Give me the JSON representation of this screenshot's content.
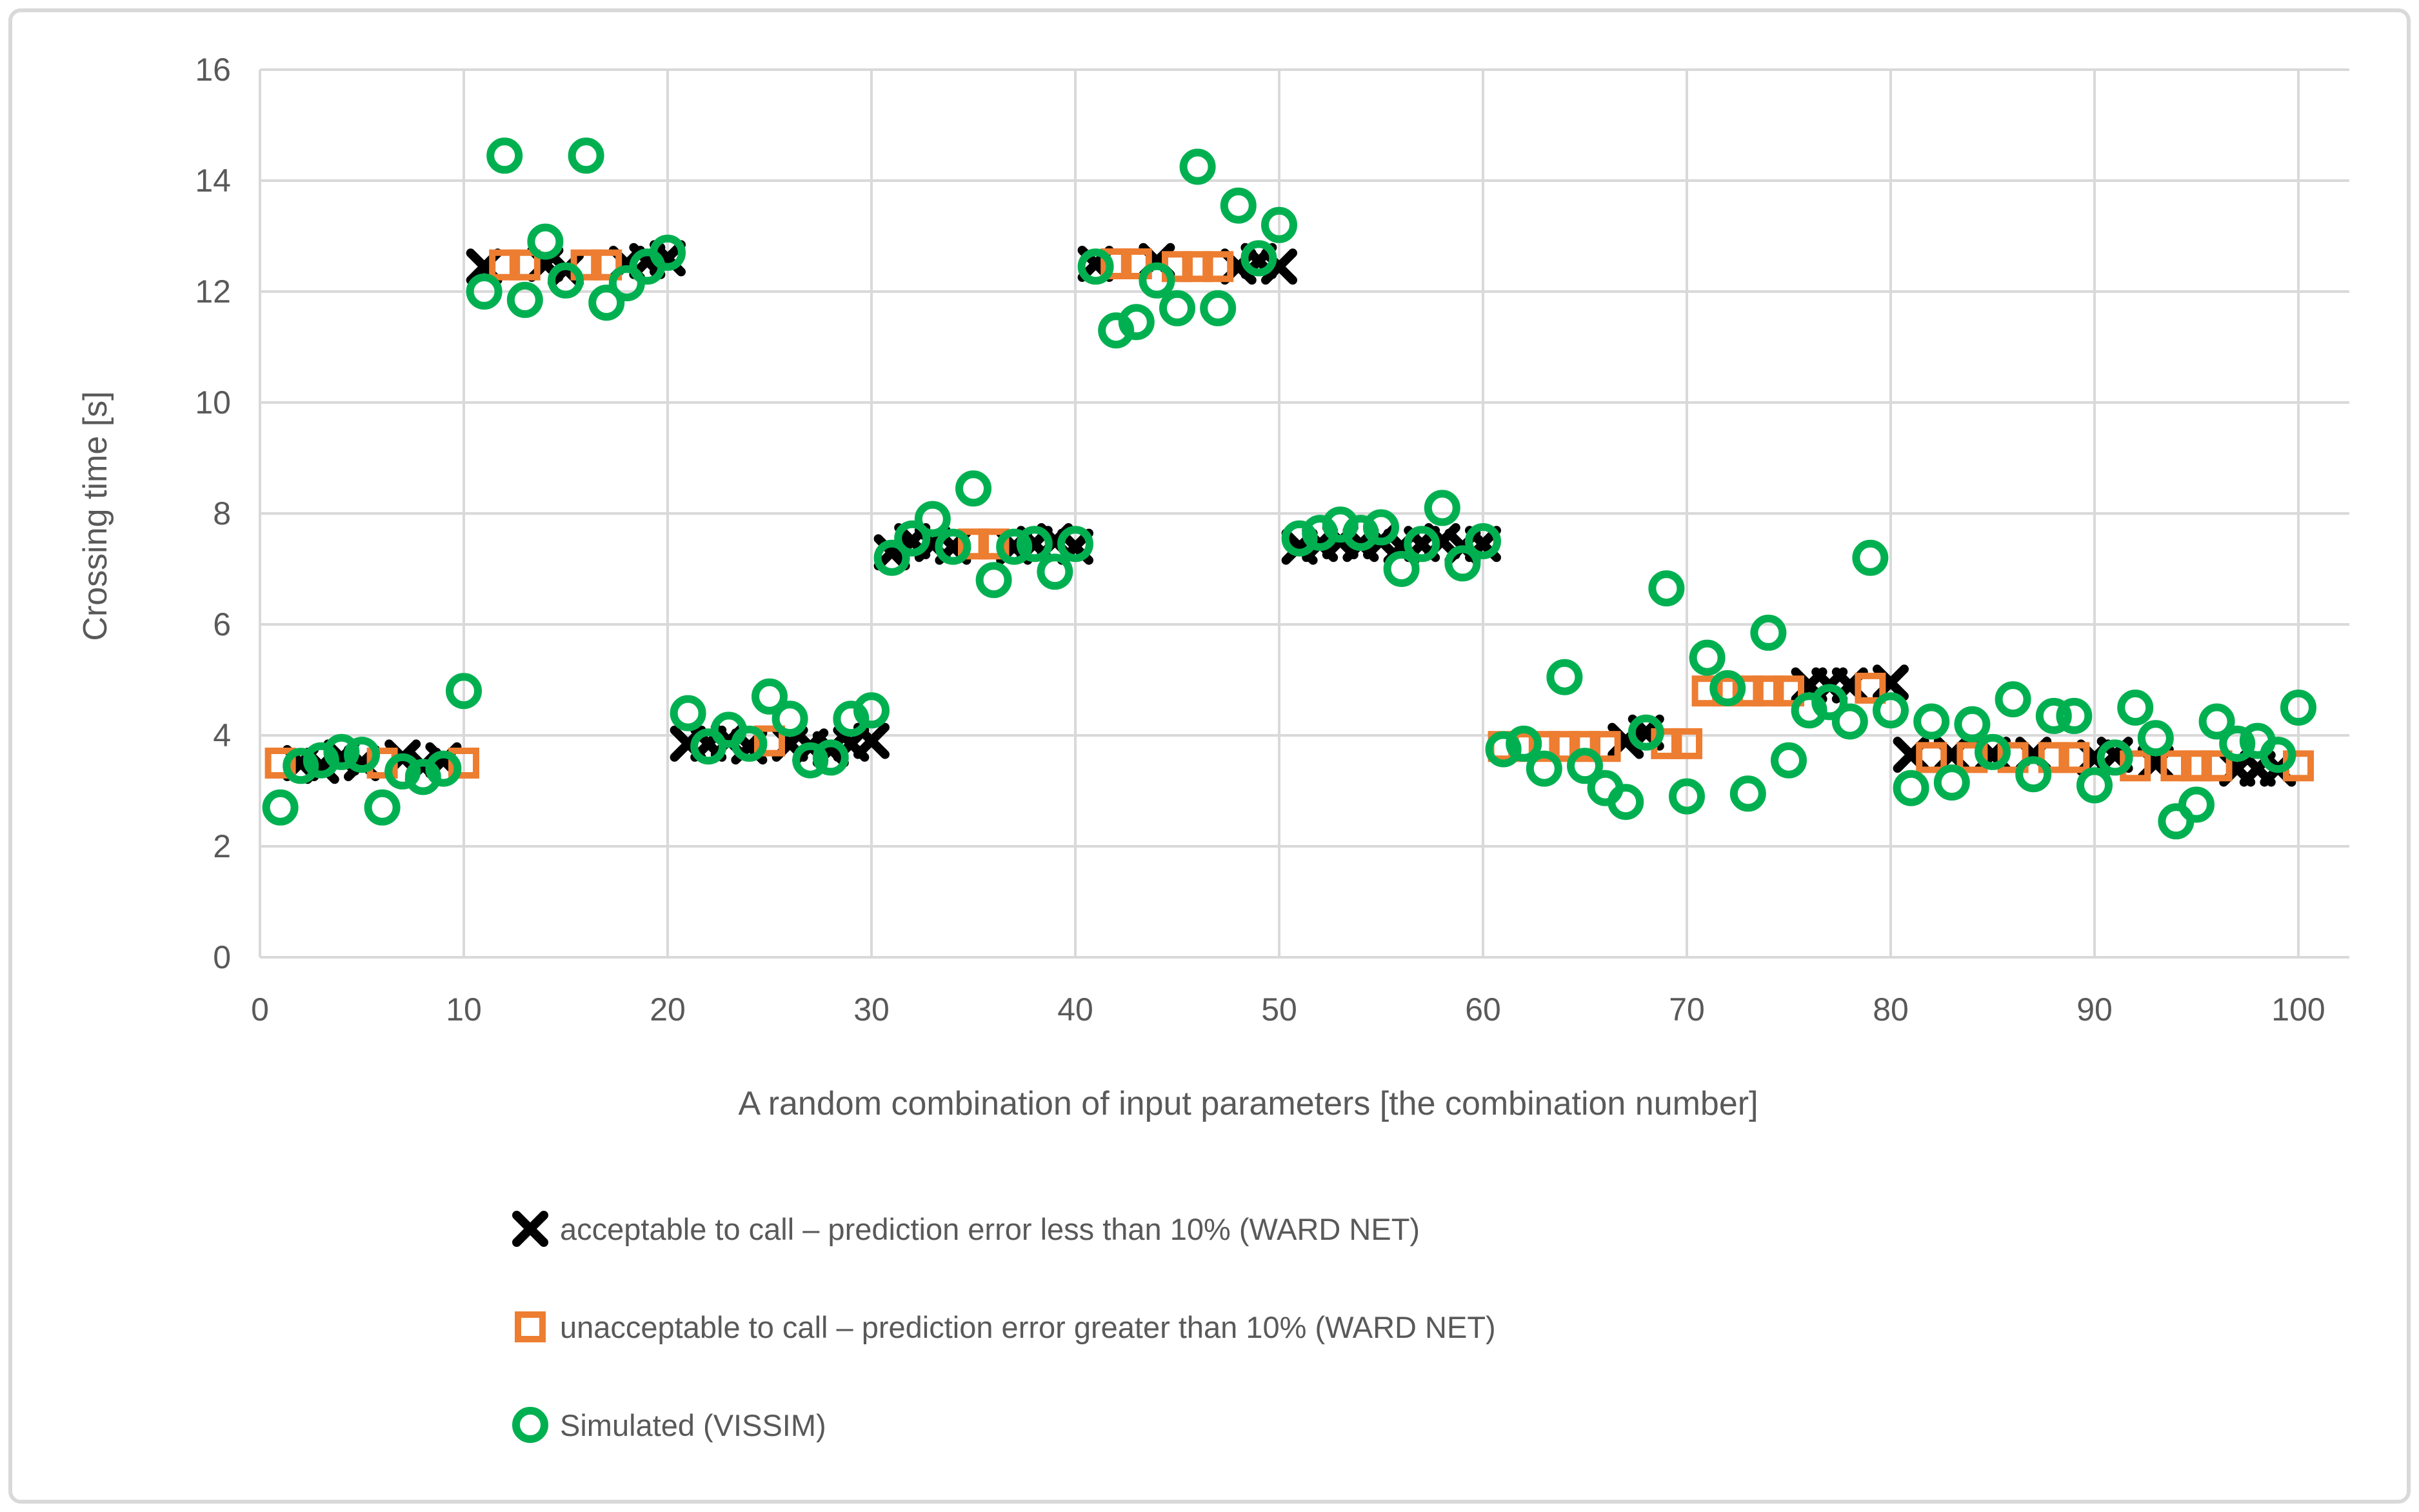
{
  "frame": {
    "border_color": "#d9d9d9",
    "background": "#ffffff"
  },
  "colors": {
    "grid": "#d9d9d9",
    "axis_text": "#595959",
    "series_acceptable": "#000000",
    "series_unacceptable": "#ed7d31",
    "series_simulated": "#00b050"
  },
  "chart_data": {
    "type": "scatter",
    "title": "",
    "xlabel": "A random combination of input parameters [the combination number]",
    "ylabel": "Crossing time [s]",
    "xlim": [
      0,
      102.5
    ],
    "ylim": [
      0,
      16
    ],
    "x_ticks": [
      0,
      10,
      20,
      30,
      40,
      50,
      60,
      70,
      80,
      90,
      100
    ],
    "y_ticks": [
      0,
      2,
      4,
      6,
      8,
      10,
      12,
      14,
      16
    ],
    "grid": "both",
    "legend_position": "bottom-left",
    "series": [
      {
        "name": "acceptable to call – prediction error less than 10% (WARD NET)",
        "marker": "x",
        "color": "#000000",
        "points": [
          [
            2,
            3.5
          ],
          [
            3,
            3.45
          ],
          [
            4,
            3.6
          ],
          [
            5,
            3.5
          ],
          [
            7,
            3.6
          ],
          [
            8,
            3.45
          ],
          [
            9,
            3.55
          ],
          [
            11,
            12.45
          ],
          [
            14,
            12.5
          ],
          [
            15,
            12.4
          ],
          [
            18,
            12.5
          ],
          [
            19,
            12.55
          ],
          [
            20,
            12.6
          ],
          [
            21,
            3.85
          ],
          [
            22,
            3.85
          ],
          [
            23,
            3.9
          ],
          [
            24,
            3.8
          ],
          [
            26,
            3.85
          ],
          [
            27,
            3.8
          ],
          [
            28,
            3.75
          ],
          [
            29,
            3.85
          ],
          [
            30,
            3.9
          ],
          [
            31,
            7.3
          ],
          [
            32,
            7.5
          ],
          [
            33,
            7.45
          ],
          [
            34,
            7.4
          ],
          [
            37,
            7.4
          ],
          [
            38,
            7.45
          ],
          [
            39,
            7.5
          ],
          [
            40,
            7.4
          ],
          [
            41,
            12.5
          ],
          [
            44,
            12.55
          ],
          [
            48,
            12.45
          ],
          [
            49,
            12.55
          ],
          [
            50,
            12.45
          ],
          [
            51,
            7.4
          ],
          [
            52,
            7.45
          ],
          [
            53,
            7.5
          ],
          [
            54,
            7.45
          ],
          [
            55,
            7.5
          ],
          [
            56,
            7.4
          ],
          [
            57,
            7.45
          ],
          [
            58,
            7.5
          ],
          [
            59,
            7.4
          ],
          [
            60,
            7.45
          ],
          [
            67,
            3.9
          ],
          [
            68,
            4.05
          ],
          [
            76,
            4.9
          ],
          [
            77,
            4.9
          ],
          [
            78,
            4.9
          ],
          [
            80,
            4.95
          ],
          [
            81,
            3.65
          ],
          [
            83,
            3.65
          ],
          [
            85,
            3.65
          ],
          [
            87,
            3.65
          ],
          [
            90,
            3.6
          ],
          [
            91,
            3.65
          ],
          [
            93,
            3.5
          ],
          [
            97,
            3.4
          ],
          [
            98,
            3.4
          ],
          [
            99,
            3.4
          ]
        ]
      },
      {
        "name": "unacceptable to call – prediction error greater than 10% (WARD NET)",
        "marker": "open-square",
        "color": "#ed7d31",
        "points": [
          [
            1,
            3.5
          ],
          [
            6,
            3.5
          ],
          [
            10,
            3.5
          ],
          [
            12,
            12.48
          ],
          [
            13,
            12.48
          ],
          [
            16,
            12.48
          ],
          [
            17,
            12.48
          ],
          [
            25,
            3.9
          ],
          [
            35,
            7.45
          ],
          [
            36,
            7.45
          ],
          [
            42,
            12.5
          ],
          [
            43,
            12.5
          ],
          [
            45,
            12.45
          ],
          [
            46,
            12.45
          ],
          [
            47,
            12.45
          ],
          [
            61,
            3.8
          ],
          [
            62,
            3.8
          ],
          [
            63,
            3.8
          ],
          [
            64,
            3.8
          ],
          [
            65,
            3.8
          ],
          [
            66,
            3.8
          ],
          [
            69,
            3.85
          ],
          [
            70,
            3.85
          ],
          [
            71,
            4.8
          ],
          [
            72,
            4.8
          ],
          [
            73,
            4.8
          ],
          [
            74,
            4.8
          ],
          [
            75,
            4.8
          ],
          [
            79,
            4.85
          ],
          [
            82,
            3.6
          ],
          [
            84,
            3.6
          ],
          [
            86,
            3.6
          ],
          [
            88,
            3.6
          ],
          [
            89,
            3.6
          ],
          [
            92,
            3.45
          ],
          [
            94,
            3.45
          ],
          [
            95,
            3.45
          ],
          [
            96,
            3.45
          ],
          [
            100,
            3.45
          ]
        ]
      },
      {
        "name": "Simulated (VISSIM)",
        "marker": "open-circle",
        "color": "#00b050",
        "points": [
          [
            1,
            2.7
          ],
          [
            2,
            3.45
          ],
          [
            3,
            3.55
          ],
          [
            4,
            3.7
          ],
          [
            5,
            3.65
          ],
          [
            6,
            2.7
          ],
          [
            7,
            3.35
          ],
          [
            8,
            3.25
          ],
          [
            9,
            3.4
          ],
          [
            10,
            4.8
          ],
          [
            11,
            12.0
          ],
          [
            12,
            14.45
          ],
          [
            13,
            11.85
          ],
          [
            14,
            12.9
          ],
          [
            15,
            12.2
          ],
          [
            16,
            14.45
          ],
          [
            17,
            11.8
          ],
          [
            18,
            12.15
          ],
          [
            19,
            12.45
          ],
          [
            20,
            12.7
          ],
          [
            21,
            4.4
          ],
          [
            22,
            3.8
          ],
          [
            23,
            4.1
          ],
          [
            24,
            3.85
          ],
          [
            25,
            4.7
          ],
          [
            26,
            4.3
          ],
          [
            27,
            3.55
          ],
          [
            28,
            3.6
          ],
          [
            29,
            4.3
          ],
          [
            30,
            4.45
          ],
          [
            31,
            7.2
          ],
          [
            32,
            7.55
          ],
          [
            33,
            7.9
          ],
          [
            34,
            7.4
          ],
          [
            35,
            8.45
          ],
          [
            36,
            6.8
          ],
          [
            37,
            7.4
          ],
          [
            38,
            7.45
          ],
          [
            39,
            6.95
          ],
          [
            40,
            7.45
          ],
          [
            41,
            12.45
          ],
          [
            42,
            11.3
          ],
          [
            43,
            11.45
          ],
          [
            44,
            12.2
          ],
          [
            45,
            11.7
          ],
          [
            46,
            14.25
          ],
          [
            47,
            11.7
          ],
          [
            48,
            13.55
          ],
          [
            49,
            12.6
          ],
          [
            50,
            13.2
          ],
          [
            51,
            7.55
          ],
          [
            52,
            7.65
          ],
          [
            53,
            7.8
          ],
          [
            54,
            7.65
          ],
          [
            55,
            7.75
          ],
          [
            56,
            7.0
          ],
          [
            57,
            7.45
          ],
          [
            58,
            8.1
          ],
          [
            59,
            7.1
          ],
          [
            60,
            7.5
          ],
          [
            61,
            3.75
          ],
          [
            62,
            3.85
          ],
          [
            63,
            3.4
          ],
          [
            64,
            5.05
          ],
          [
            65,
            3.45
          ],
          [
            66,
            3.05
          ],
          [
            67,
            2.8
          ],
          [
            68,
            4.05
          ],
          [
            69,
            6.65
          ],
          [
            70,
            2.9
          ],
          [
            71,
            5.4
          ],
          [
            72,
            4.85
          ],
          [
            73,
            2.95
          ],
          [
            74,
            5.85
          ],
          [
            75,
            3.55
          ],
          [
            76,
            4.45
          ],
          [
            77,
            4.6
          ],
          [
            78,
            4.25
          ],
          [
            79,
            7.2
          ],
          [
            80,
            4.45
          ],
          [
            81,
            3.05
          ],
          [
            82,
            4.25
          ],
          [
            83,
            3.15
          ],
          [
            84,
            4.2
          ],
          [
            85,
            3.7
          ],
          [
            86,
            4.65
          ],
          [
            87,
            3.3
          ],
          [
            88,
            4.35
          ],
          [
            89,
            4.35
          ],
          [
            90,
            3.1
          ],
          [
            91,
            3.6
          ],
          [
            92,
            4.5
          ],
          [
            93,
            3.95
          ],
          [
            94,
            2.45
          ],
          [
            95,
            2.75
          ],
          [
            96,
            4.25
          ],
          [
            97,
            3.85
          ],
          [
            98,
            3.9
          ],
          [
            99,
            3.65
          ],
          [
            100,
            4.5
          ]
        ]
      }
    ]
  }
}
